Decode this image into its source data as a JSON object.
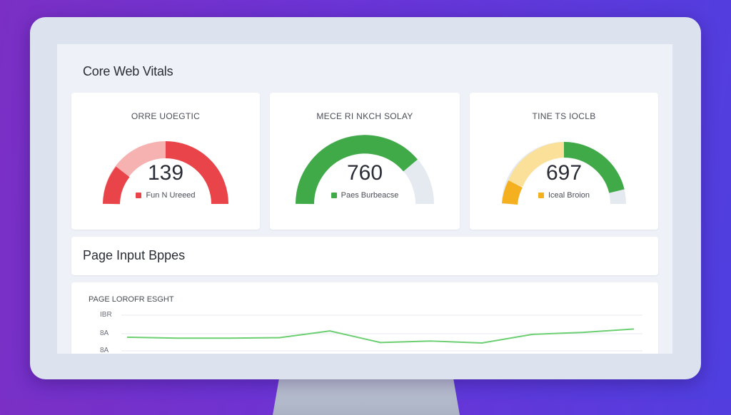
{
  "page": {
    "title": "Core Web Vitals"
  },
  "gauges": [
    {
      "label": "ORRE UOEGTIC",
      "value": "139",
      "legend": "Fun N Ureeed",
      "legend_color": "#e8444a"
    },
    {
      "label": "MECE RI NKCH SOLAY",
      "value": "760",
      "legend": "Paes Burbeacse",
      "legend_color": "#40aa48"
    },
    {
      "label": "TINE TS IOCLB",
      "value": "697",
      "legend": "Iceal Broion",
      "legend_color": "#f5b020"
    }
  ],
  "section": {
    "title": "Page Input Bppes"
  },
  "chart_data": {
    "type": "line",
    "title": "PAGE LOROFR ESGHT",
    "y_tick_labels": [
      "IBR",
      "8A",
      "8A"
    ],
    "series": [
      {
        "values": [
          0.46,
          0.44,
          0.44,
          0.45,
          0.59,
          0.35,
          0.38,
          0.34,
          0.52,
          0.56,
          0.63
        ]
      }
    ],
    "ylim": [
      0,
      1
    ],
    "grid": true,
    "colors": {
      "line": "#6ccf72"
    }
  },
  "colors": {
    "red": "#e8444a",
    "red_light": "#f6b2b0",
    "green": "#40aa48",
    "track": "#e5e9f0",
    "yellow": "#f5b020",
    "yellow_light": "#fbe09a"
  }
}
